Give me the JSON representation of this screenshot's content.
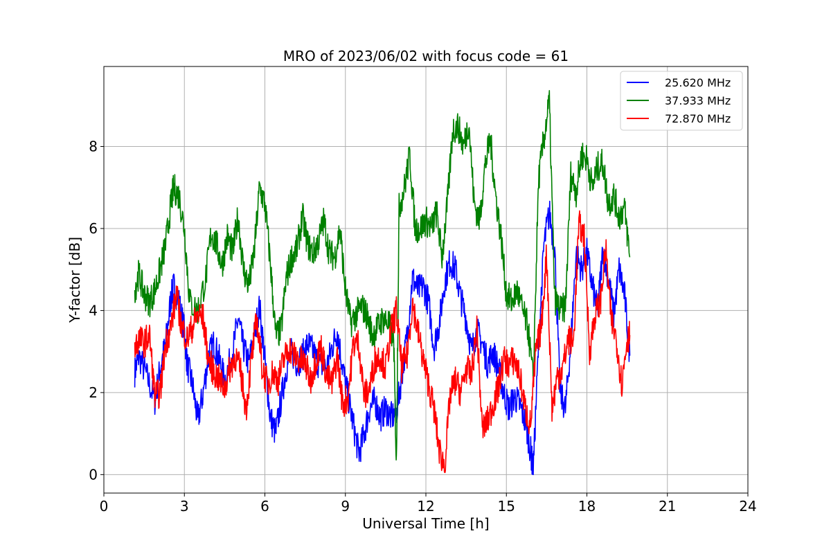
{
  "chart_data": {
    "type": "line",
    "title": "MRO of 2023/06/02 with focus code = 61",
    "xlabel": "Universal Time [h]",
    "ylabel": "Y-factor [dB]",
    "xlim": [
      0,
      24
    ],
    "ylim": [
      -0.45,
      9.95
    ],
    "xticks": [
      0,
      3,
      6,
      9,
      12,
      15,
      18,
      21,
      24
    ],
    "yticks": [
      0,
      2,
      4,
      6,
      8
    ],
    "grid": true,
    "legend_position": "top-right",
    "series": [
      {
        "name": "25.620 MHz",
        "color": "#0000ff",
        "x": [
          1.15,
          1.3,
          1.6,
          1.9,
          2.1,
          2.3,
          2.5,
          2.6,
          2.8,
          3.0,
          3.1,
          3.3,
          3.5,
          3.7,
          3.9,
          4.1,
          4.3,
          4.5,
          4.8,
          5.0,
          5.2,
          5.4,
          5.6,
          5.8,
          6.0,
          6.2,
          6.4,
          6.6,
          6.8,
          7.0,
          7.2,
          7.4,
          7.6,
          7.8,
          8.0,
          8.3,
          8.5,
          8.7,
          8.9,
          9.1,
          9.3,
          9.5,
          9.7,
          9.9,
          10.1,
          10.3,
          10.5,
          10.7,
          10.9,
          11.1,
          11.3,
          11.5,
          11.7,
          11.9,
          12.1,
          12.3,
          12.5,
          12.7,
          12.9,
          13.1,
          13.3,
          13.5,
          13.7,
          13.9,
          14.1,
          14.3,
          14.5,
          14.7,
          14.9,
          15.1,
          15.3,
          15.5,
          15.7,
          15.9,
          16.0,
          16.2,
          16.4,
          16.6,
          16.8,
          17.0,
          17.2,
          17.4,
          17.6,
          17.8,
          18.0,
          18.2,
          18.4,
          18.6,
          18.8,
          19.0,
          19.2,
          19.4,
          19.6
        ],
        "y": [
          2.5,
          2.9,
          2.4,
          1.8,
          2.6,
          3.2,
          4.3,
          4.6,
          4.2,
          3.5,
          2.7,
          2.2,
          1.3,
          2.0,
          2.9,
          3.2,
          2.8,
          2.3,
          3.0,
          3.8,
          3.1,
          2.7,
          3.4,
          4.1,
          2.8,
          1.4,
          1.0,
          1.8,
          2.6,
          3.0,
          2.7,
          2.9,
          3.2,
          3.0,
          2.7,
          2.6,
          3.1,
          3.5,
          2.6,
          1.9,
          1.2,
          0.5,
          1.0,
          1.6,
          1.8,
          1.4,
          1.6,
          1.4,
          1.5,
          2.4,
          3.4,
          4.8,
          4.5,
          4.6,
          4.2,
          3.1,
          3.7,
          4.7,
          5.2,
          5.0,
          4.3,
          3.8,
          3.0,
          3.5,
          3.2,
          2.7,
          3.0,
          2.6,
          2.0,
          1.6,
          1.9,
          1.7,
          1.3,
          0.6,
          0.1,
          3.2,
          5.6,
          6.4,
          5.5,
          2.0,
          1.6,
          3.2,
          5.4,
          5.0,
          5.4,
          4.6,
          4.0,
          5.5,
          4.8,
          3.9,
          5.0,
          4.4,
          2.9
        ]
      },
      {
        "name": "37.933 MHz",
        "color": "#008000",
        "x": [
          1.15,
          1.3,
          1.5,
          1.7,
          1.9,
          2.1,
          2.3,
          2.5,
          2.6,
          2.8,
          3.0,
          3.2,
          3.5,
          3.8,
          4.0,
          4.2,
          4.4,
          4.6,
          4.8,
          5.0,
          5.2,
          5.4,
          5.6,
          5.8,
          6.0,
          6.2,
          6.4,
          6.6,
          6.8,
          7.0,
          7.2,
          7.4,
          7.6,
          7.8,
          8.0,
          8.2,
          8.4,
          8.6,
          8.8,
          9.0,
          9.2,
          9.4,
          9.6,
          9.8,
          10.0,
          10.2,
          10.4,
          10.6,
          10.8,
          10.9,
          11.0,
          11.2,
          11.4,
          11.6,
          11.8,
          12.0,
          12.2,
          12.4,
          12.6,
          12.8,
          13.0,
          13.2,
          13.4,
          13.6,
          13.8,
          14.0,
          14.2,
          14.4,
          14.6,
          14.8,
          15.0,
          15.2,
          15.4,
          15.6,
          15.8,
          16.0,
          16.2,
          16.4,
          16.6,
          16.8,
          17.0,
          17.2,
          17.4,
          17.6,
          17.8,
          18.0,
          18.2,
          18.4,
          18.6,
          18.8,
          19.0,
          19.2,
          19.4,
          19.6
        ],
        "y": [
          4.5,
          4.9,
          4.4,
          4.2,
          4.5,
          5.0,
          5.6,
          6.6,
          7.0,
          6.8,
          6.0,
          4.2,
          4.0,
          4.8,
          5.9,
          5.6,
          5.1,
          5.8,
          5.4,
          6.3,
          5.0,
          4.6,
          5.4,
          7.0,
          6.6,
          5.2,
          3.4,
          3.5,
          4.8,
          5.3,
          5.5,
          6.3,
          5.6,
          5.4,
          5.7,
          6.2,
          5.4,
          5.3,
          6.0,
          4.5,
          3.7,
          3.9,
          4.1,
          3.9,
          3.4,
          3.6,
          3.8,
          3.7,
          3.3,
          0.2,
          6.5,
          7.0,
          7.8,
          6.0,
          6.0,
          6.2,
          6.0,
          6.4,
          5.3,
          6.6,
          8.4,
          8.5,
          8.0,
          8.6,
          6.6,
          6.2,
          7.5,
          8.2,
          6.8,
          5.8,
          4.4,
          4.2,
          4.5,
          4.0,
          3.6,
          2.3,
          7.2,
          8.2,
          9.1,
          4.3,
          4.0,
          4.1,
          7.3,
          6.9,
          7.8,
          7.7,
          7.0,
          7.5,
          7.6,
          6.6,
          6.8,
          6.3,
          6.5,
          5.3
        ]
      },
      {
        "name": "72.870 MHz",
        "color": "#ff0000",
        "x": [
          1.15,
          1.3,
          1.5,
          1.7,
          1.9,
          2.1,
          2.3,
          2.5,
          2.7,
          2.9,
          3.1,
          3.3,
          3.5,
          3.7,
          3.9,
          4.1,
          4.3,
          4.5,
          4.7,
          4.9,
          5.1,
          5.3,
          5.5,
          5.7,
          5.9,
          6.1,
          6.3,
          6.5,
          6.7,
          6.9,
          7.1,
          7.3,
          7.5,
          7.7,
          7.9,
          8.1,
          8.3,
          8.5,
          8.7,
          8.9,
          9.1,
          9.3,
          9.5,
          9.7,
          9.9,
          10.1,
          10.3,
          10.5,
          10.7,
          10.9,
          11.1,
          11.3,
          11.5,
          11.7,
          11.9,
          12.1,
          12.3,
          12.5,
          12.7,
          12.9,
          13.1,
          13.3,
          13.5,
          13.7,
          13.9,
          14.1,
          14.3,
          14.5,
          14.7,
          14.9,
          15.1,
          15.3,
          15.5,
          15.7,
          15.9,
          16.1,
          16.3,
          16.5,
          16.7,
          16.9,
          17.1,
          17.3,
          17.5,
          17.7,
          17.9,
          18.1,
          18.3,
          18.5,
          18.7,
          18.9,
          19.1,
          19.3,
          19.5,
          19.6
        ],
        "y": [
          3.1,
          3.3,
          3.2,
          3.4,
          1.9,
          2.0,
          3.2,
          3.6,
          4.4,
          3.6,
          3.3,
          3.6,
          3.9,
          3.8,
          2.8,
          2.5,
          2.3,
          2.1,
          2.6,
          2.9,
          2.5,
          1.6,
          2.8,
          3.8,
          2.6,
          2.2,
          2.5,
          2.3,
          2.8,
          3.1,
          2.9,
          2.8,
          2.7,
          2.3,
          2.8,
          3.1,
          2.4,
          2.2,
          2.9,
          1.7,
          1.9,
          3.2,
          3.2,
          1.9,
          2.1,
          2.8,
          2.9,
          2.6,
          3.5,
          4.0,
          2.6,
          2.9,
          4.2,
          3.5,
          2.8,
          2.2,
          1.6,
          0.6,
          0.2,
          1.9,
          2.3,
          2.0,
          2.6,
          2.4,
          3.6,
          1.1,
          1.3,
          1.7,
          2.1,
          2.8,
          2.7,
          2.8,
          2.4,
          1.6,
          1.2,
          3.0,
          3.6,
          5.4,
          1.6,
          2.4,
          2.6,
          3.3,
          3.2,
          6.1,
          5.8,
          3.0,
          3.9,
          4.2,
          5.5,
          3.8,
          3.3,
          2.2,
          3.3,
          3.4
        ]
      }
    ]
  }
}
